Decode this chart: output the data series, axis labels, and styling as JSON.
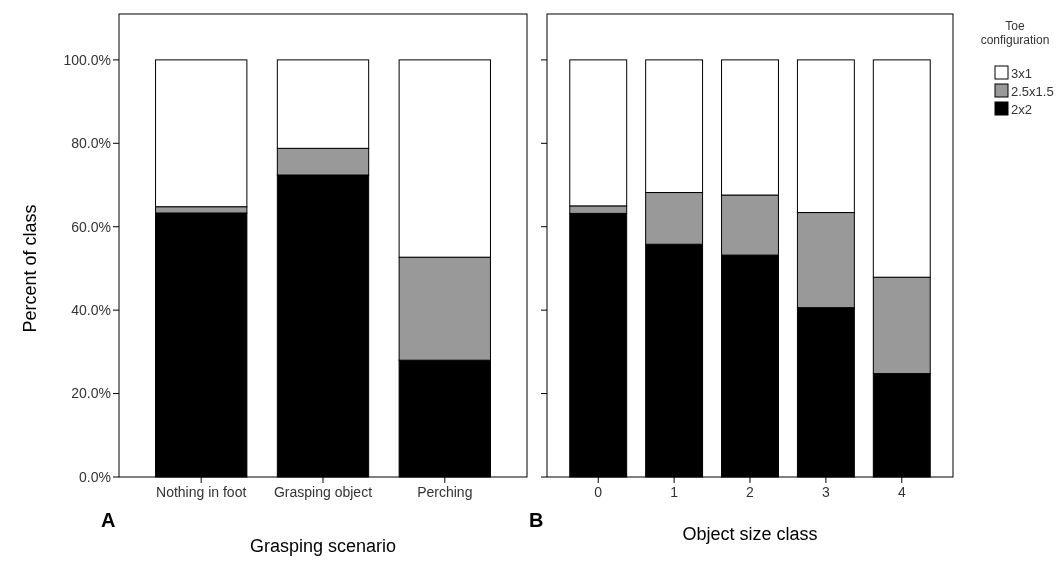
{
  "chart_data": [
    {
      "type": "bar",
      "stacked": true,
      "categories": [
        "Nothing in foot",
        "Grasping object",
        "Perching"
      ],
      "xlabel": "Grasping scenario",
      "ylabel": "Percent of class",
      "annotations": [
        "A"
      ],
      "series": [
        {
          "color": "#000000",
          "values": [
            63.3,
            72.4,
            28.0
          ]
        },
        {
          "color": "#999999",
          "values": [
            1.5,
            6.4,
            24.7
          ]
        },
        {
          "color": "#ffffff",
          "values": [
            35.2,
            21.2,
            47.3
          ]
        }
      ],
      "ylim": [
        0,
        111
      ],
      "yticks": [
        {
          "value": 0,
          "label": "0.0%"
        },
        {
          "value": 20,
          "label": "20.0%"
        },
        {
          "value": 40,
          "label": "40.0%"
        },
        {
          "value": 60,
          "label": "60.0%"
        },
        {
          "value": 80,
          "label": "80.0%"
        },
        {
          "value": 100,
          "label": "100.0%"
        }
      ],
      "grid": false,
      "legend": false
    },
    {
      "type": "bar",
      "stacked": true,
      "categories": [
        "0",
        "1",
        "2",
        "3",
        "4"
      ],
      "xlabel": "Object size class",
      "annotations": [
        "B"
      ],
      "legend_title": "Toe configuration",
      "series": [
        {
          "name": "2x2",
          "color": "#000000",
          "values": [
            63.2,
            55.8,
            53.2,
            40.6,
            24.8
          ]
        },
        {
          "name": "2.5x1.5",
          "color": "#999999",
          "values": [
            1.8,
            12.4,
            14.4,
            22.8,
            23.1
          ]
        },
        {
          "name": "3x1",
          "color": "#ffffff",
          "values": [
            35.0,
            31.8,
            32.4,
            36.6,
            52.1
          ]
        }
      ],
      "ylim": [
        0,
        111
      ],
      "yticks": [
        {
          "value": 0,
          "label": null
        },
        {
          "value": 20,
          "label": null
        },
        {
          "value": 40,
          "label": null
        },
        {
          "value": 60,
          "label": null
        },
        {
          "value": 80,
          "label": null
        },
        {
          "value": 100,
          "label": null
        }
      ],
      "tick_labels": "x",
      "grid": false,
      "legend": "right"
    }
  ]
}
